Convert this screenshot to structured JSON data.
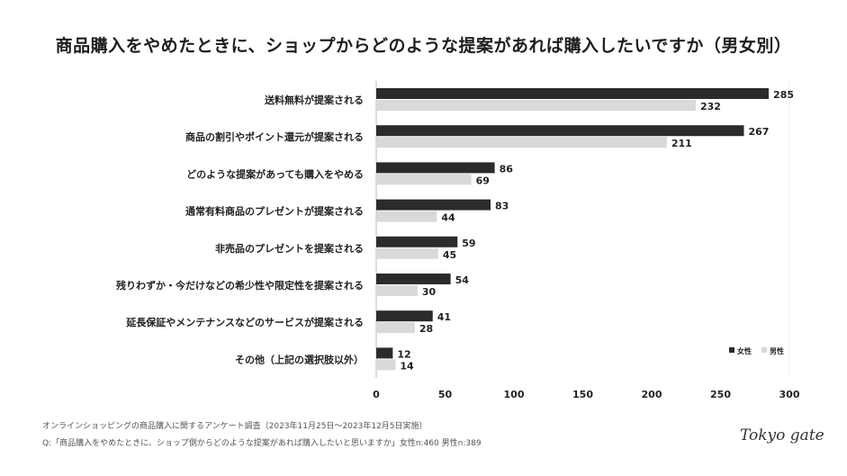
{
  "title": "商品購入をやめたときに、ショップからどのような提案があれば購入したいですか（男女別）",
  "chart_data": {
    "type": "bar",
    "orientation": "horizontal",
    "categories": [
      "送料無料が提案される",
      "商品の割引やポイント還元が提案される",
      "どのような提案があっても購入をやめる",
      "通常有料商品のプレゼントが提案される",
      "非売品のプレゼントを提案される",
      "残りわずか・今だけなどの希少性や限定性を提案される",
      "延長保証やメンテナンスなどのサービスが提案される",
      "その他（上記の選択肢以外）"
    ],
    "series": [
      {
        "name": "女性",
        "color": "#2b2b2b",
        "values": [
          285,
          267,
          86,
          83,
          59,
          54,
          41,
          12
        ]
      },
      {
        "name": "男性",
        "color": "#d9d9d9",
        "values": [
          232,
          211,
          69,
          44,
          45,
          30,
          28,
          14
        ]
      }
    ],
    "xlim": [
      0,
      300
    ],
    "xticks": [
      "0",
      "50",
      "100",
      "150",
      "200",
      "250",
      "300"
    ],
    "legend_position": "bottom-right",
    "grid": false
  },
  "footnotes": [
    "オンラインショッピングの商品購入に関するアンケート調査（2023年11月25日〜2023年12月5日実施）",
    "Q:「商品購入をやめたときに、ショップ側からどのような提案があれば購入したいと思いますか」女性n:460 男性n:389"
  ],
  "logo": "Tokyo gate"
}
